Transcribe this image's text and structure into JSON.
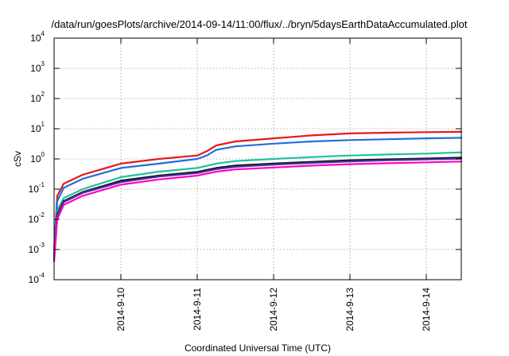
{
  "chart_data": {
    "type": "line",
    "title": "/data/run/goesPlots/archive/2014-09-14/11:00/flux/../bryn/5daysEarthDataAccumulated.plot",
    "xlabel": "Coordinated Universal Time (UTC)",
    "ylabel": "cSv",
    "x_scale": "time",
    "y_scale": "log",
    "xlim": [
      "2014-09-09 03:00",
      "2014-09-14 11:00"
    ],
    "ylim": [
      0.0001,
      10000
    ],
    "grid": true,
    "legend": "none",
    "x_ticks": [
      "2014-9-10",
      "2014-9-11",
      "2014-9-12",
      "2014-9-13",
      "2014-9-14"
    ],
    "y_ticks": [
      {
        "base": "10",
        "exp": "-4",
        "value": 0.0001
      },
      {
        "base": "10",
        "exp": "-3",
        "value": 0.001
      },
      {
        "base": "10",
        "exp": "-2",
        "value": 0.01
      },
      {
        "base": "10",
        "exp": "-1",
        "value": 0.1
      },
      {
        "base": "10",
        "exp": "0",
        "value": 1
      },
      {
        "base": "10",
        "exp": "1",
        "value": 10
      },
      {
        "base": "10",
        "exp": "2",
        "value": 100
      },
      {
        "base": "10",
        "exp": "3",
        "value": 1000
      },
      {
        "base": "10",
        "exp": "4",
        "value": 10000
      }
    ],
    "series": [
      {
        "color": "#e41a1c",
        "points": [
          [
            "2014-09-09 03:00",
            0.001
          ],
          [
            "2014-09-09 04:00",
            0.06
          ],
          [
            "2014-09-09 06:00",
            0.15
          ],
          [
            "2014-09-09 12:00",
            0.3
          ],
          [
            "2014-09-10 00:00",
            0.7
          ],
          [
            "2014-09-10 12:00",
            1.0
          ],
          [
            "2014-09-11 00:00",
            1.3
          ],
          [
            "2014-09-11 03:00",
            1.8
          ],
          [
            "2014-09-11 06:00",
            2.8
          ],
          [
            "2014-09-11 12:00",
            3.8
          ],
          [
            "2014-09-12 00:00",
            4.8
          ],
          [
            "2014-09-12 12:00",
            6.0
          ],
          [
            "2014-09-13 00:00",
            7.0
          ],
          [
            "2014-09-13 12:00",
            7.4
          ],
          [
            "2014-09-14 00:00",
            7.7
          ],
          [
            "2014-09-14 11:00",
            7.9
          ]
        ]
      },
      {
        "color": "#1f6fe0",
        "points": [
          [
            "2014-09-09 03:00",
            0.0007
          ],
          [
            "2014-09-09 04:00",
            0.04
          ],
          [
            "2014-09-09 06:00",
            0.11
          ],
          [
            "2014-09-09 12:00",
            0.22
          ],
          [
            "2014-09-10 00:00",
            0.5
          ],
          [
            "2014-09-10 12:00",
            0.7
          ],
          [
            "2014-09-11 00:00",
            1.0
          ],
          [
            "2014-09-11 03:00",
            1.3
          ],
          [
            "2014-09-11 06:00",
            2.0
          ],
          [
            "2014-09-11 12:00",
            2.6
          ],
          [
            "2014-09-12 00:00",
            3.2
          ],
          [
            "2014-09-12 12:00",
            3.8
          ],
          [
            "2014-09-13 00:00",
            4.2
          ],
          [
            "2014-09-13 12:00",
            4.5
          ],
          [
            "2014-09-14 00:00",
            4.8
          ],
          [
            "2014-09-14 11:00",
            5.0
          ]
        ]
      },
      {
        "color": "#20c0a0",
        "points": [
          [
            "2014-09-09 03:00",
            0.0005
          ],
          [
            "2014-09-09 04:00",
            0.02
          ],
          [
            "2014-09-09 06:00",
            0.05
          ],
          [
            "2014-09-09 12:00",
            0.1
          ],
          [
            "2014-09-10 00:00",
            0.25
          ],
          [
            "2014-09-10 12:00",
            0.38
          ],
          [
            "2014-09-11 00:00",
            0.5
          ],
          [
            "2014-09-11 06:00",
            0.7
          ],
          [
            "2014-09-11 12:00",
            0.85
          ],
          [
            "2014-09-12 00:00",
            1.0
          ],
          [
            "2014-09-12 12:00",
            1.15
          ],
          [
            "2014-09-13 00:00",
            1.3
          ],
          [
            "2014-09-13 12:00",
            1.4
          ],
          [
            "2014-09-14 00:00",
            1.5
          ],
          [
            "2014-09-14 11:00",
            1.65
          ]
        ]
      },
      {
        "color": "#101010",
        "points": [
          [
            "2014-09-09 03:00",
            0.0005
          ],
          [
            "2014-09-09 04:00",
            0.015
          ],
          [
            "2014-09-09 06:00",
            0.04
          ],
          [
            "2014-09-09 12:00",
            0.08
          ],
          [
            "2014-09-10 00:00",
            0.19
          ],
          [
            "2014-09-10 12:00",
            0.28
          ],
          [
            "2014-09-11 00:00",
            0.37
          ],
          [
            "2014-09-11 06:00",
            0.5
          ],
          [
            "2014-09-11 12:00",
            0.6
          ],
          [
            "2014-09-12 00:00",
            0.7
          ],
          [
            "2014-09-12 12:00",
            0.8
          ],
          [
            "2014-09-13 00:00",
            0.9
          ],
          [
            "2014-09-13 12:00",
            0.97
          ],
          [
            "2014-09-14 00:00",
            1.03
          ],
          [
            "2014-09-14 11:00",
            1.1
          ]
        ]
      },
      {
        "color": "#4b2fa0",
        "points": [
          [
            "2014-09-09 03:00",
            0.0005
          ],
          [
            "2014-09-09 04:00",
            0.014
          ],
          [
            "2014-09-09 06:00",
            0.037
          ],
          [
            "2014-09-09 12:00",
            0.075
          ],
          [
            "2014-09-10 00:00",
            0.17
          ],
          [
            "2014-09-10 12:00",
            0.26
          ],
          [
            "2014-09-11 00:00",
            0.34
          ],
          [
            "2014-09-11 06:00",
            0.46
          ],
          [
            "2014-09-11 12:00",
            0.55
          ],
          [
            "2014-09-12 00:00",
            0.65
          ],
          [
            "2014-09-12 12:00",
            0.74
          ],
          [
            "2014-09-13 00:00",
            0.83
          ],
          [
            "2014-09-13 12:00",
            0.9
          ],
          [
            "2014-09-14 00:00",
            0.96
          ],
          [
            "2014-09-14 11:00",
            1.02
          ]
        ]
      },
      {
        "color": "#ff00c8",
        "points": [
          [
            "2014-09-09 03:00",
            0.0004
          ],
          [
            "2014-09-09 04:00",
            0.01
          ],
          [
            "2014-09-09 06:00",
            0.03
          ],
          [
            "2014-09-09 12:00",
            0.06
          ],
          [
            "2014-09-10 00:00",
            0.14
          ],
          [
            "2014-09-10 12:00",
            0.21
          ],
          [
            "2014-09-11 00:00",
            0.28
          ],
          [
            "2014-09-11 06:00",
            0.38
          ],
          [
            "2014-09-11 12:00",
            0.45
          ],
          [
            "2014-09-12 00:00",
            0.52
          ],
          [
            "2014-09-12 12:00",
            0.6
          ],
          [
            "2014-09-13 00:00",
            0.67
          ],
          [
            "2014-09-13 12:00",
            0.72
          ],
          [
            "2014-09-14 00:00",
            0.77
          ],
          [
            "2014-09-14 11:00",
            0.82
          ]
        ]
      }
    ]
  }
}
